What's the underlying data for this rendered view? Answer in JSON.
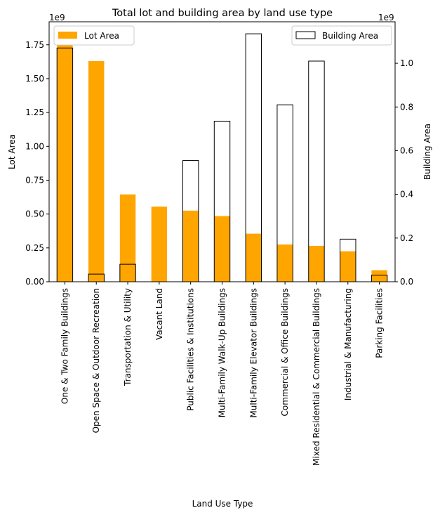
{
  "chart_data": {
    "type": "bar",
    "title": "Total lot and building area by land use type",
    "xlabel": "Land Use Type",
    "ylabel_left": "Lot Area",
    "ylabel_right": "Building Area",
    "left_offset_text": "1e9",
    "right_offset_text": "1e9",
    "categories": [
      "One & Two Family Buildings",
      "Open Space & Outdoor Recreation",
      "Transportation & Utility",
      "Vacant Land",
      "Public Facilities & Institutions",
      "Multi-Family Walk-Up Buildings",
      "Multi-Family Elevator Buildings",
      "Commercial & Office Buildings",
      "Mixed Residential & Commercial Buildings",
      "Industrial & Manufacturing",
      "Parking Facilities"
    ],
    "series": [
      {
        "name": "Lot Area",
        "axis": "left",
        "color": "#ffa500",
        "values": [
          1.8,
          1.63,
          0.645,
          0.555,
          0.525,
          0.485,
          0.355,
          0.275,
          0.265,
          0.225,
          0.085
        ]
      },
      {
        "name": "Building Area",
        "axis": "right",
        "color": "#000000",
        "values": [
          1.07,
          0.035,
          0.08,
          0.0,
          0.555,
          0.735,
          1.135,
          0.81,
          1.01,
          0.195,
          0.03
        ]
      }
    ],
    "left_ylim": [
      0,
      1.92
    ],
    "right_ylim": [
      0,
      1.19
    ],
    "left_ticks": [
      "0.00",
      "0.25",
      "0.50",
      "0.75",
      "1.00",
      "1.25",
      "1.50",
      "1.75"
    ],
    "left_tick_values": [
      0,
      0.25,
      0.5,
      0.75,
      1.0,
      1.25,
      1.5,
      1.75
    ],
    "right_ticks": [
      "0.0",
      "0.2",
      "0.4",
      "0.6",
      "0.8",
      "1.0"
    ],
    "right_tick_values": [
      0,
      0.2,
      0.4,
      0.6,
      0.8,
      1.0
    ],
    "legend_left": "upper-left",
    "legend_right": "upper-right",
    "grid": false
  }
}
